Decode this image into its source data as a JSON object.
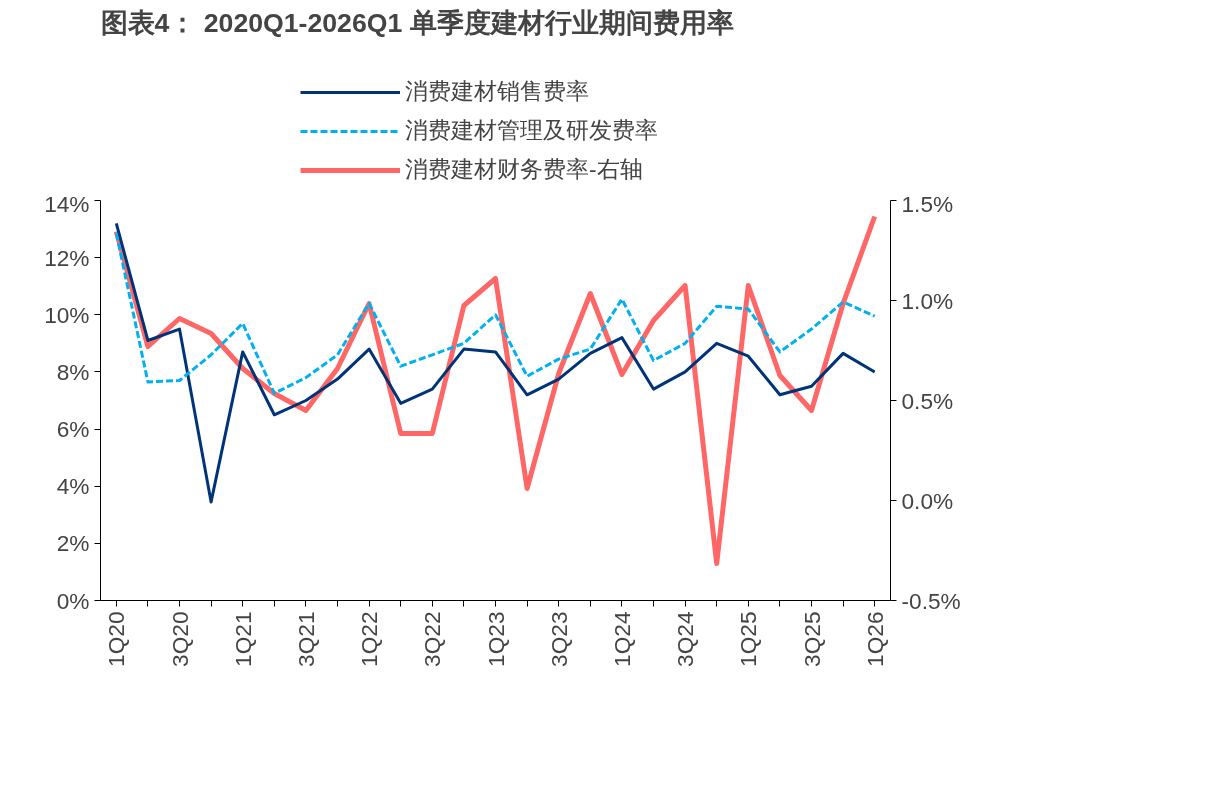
{
  "chart_data": {
    "type": "line",
    "title": "图表4： 2020Q1-2026Q1 单季度建材行业期间费用率",
    "categories": [
      "1Q20",
      null,
      "3Q20",
      null,
      "1Q21",
      null,
      "3Q21",
      null,
      "1Q22",
      null,
      "3Q22",
      null,
      "1Q23",
      null,
      "3Q23",
      null,
      "1Q24",
      null,
      "3Q24",
      null,
      "1Q25",
      null,
      "3Q25",
      null,
      "1Q26"
    ],
    "series": [
      {
        "name": "消费建材销售费率",
        "color": "#003378",
        "line_style": "solid",
        "values": [
          13.2,
          9.1,
          9.5,
          3.45,
          8.7,
          6.5,
          7.0,
          7.75,
          8.8,
          6.9,
          7.4,
          8.8,
          8.7,
          7.2,
          7.75,
          8.65,
          9.2,
          7.4,
          8.0,
          9.0,
          8.55,
          7.2,
          7.5,
          8.65,
          8.0
        ]
      },
      {
        "name": "消费建材管理及研发费率",
        "color": "#00b0f0",
        "line_style": "dashed",
        "values": [
          12.85,
          7.65,
          7.7,
          8.6,
          9.7,
          7.25,
          7.8,
          8.6,
          10.4,
          8.2,
          8.6,
          9.0,
          10.0,
          7.85,
          8.45,
          8.8,
          10.55,
          8.4,
          9.0,
          10.3,
          10.2,
          8.7,
          9.5,
          10.45,
          9.95
        ]
      },
      {
        "name": "消费建材财务费率-右轴",
        "color": "#ff6666",
        "line_style": "solid",
        "axis": "y2",
        "values": [
          1.345,
          0.77,
          0.91,
          0.835,
          0.66,
          0.535,
          0.45,
          0.66,
          0.985,
          0.335,
          0.335,
          0.975,
          1.11,
          0.06,
          0.635,
          1.035,
          0.63,
          0.9,
          1.075,
          -0.315,
          1.075,
          0.625,
          0.45,
          0.985,
          1.42
        ]
      }
    ],
    "ylim": [
      0,
      14
    ],
    "yticks": [
      {
        "value": 0,
        "label": "0%"
      },
      {
        "value": 2,
        "label": "2%"
      },
      {
        "value": 4,
        "label": "4%"
      },
      {
        "value": 6,
        "label": "6%"
      },
      {
        "value": 8,
        "label": "8%"
      },
      {
        "value": 10,
        "label": "10%"
      },
      {
        "value": 12,
        "label": "12%"
      },
      {
        "value": 14,
        "label": "14%"
      }
    ],
    "y2lim": [
      -0.5,
      1.5
    ],
    "y2ticks": [
      {
        "value": -0.5,
        "label": "-0.5%"
      },
      {
        "value": 0,
        "label": "0.0%"
      },
      {
        "value": 0.5,
        "label": "0.5%"
      },
      {
        "value": 1.0,
        "label": "1.0%"
      },
      {
        "value": 1.5,
        "label": "1.5%"
      }
    ],
    "grid": false,
    "legend": "top",
    "marker": "none"
  }
}
